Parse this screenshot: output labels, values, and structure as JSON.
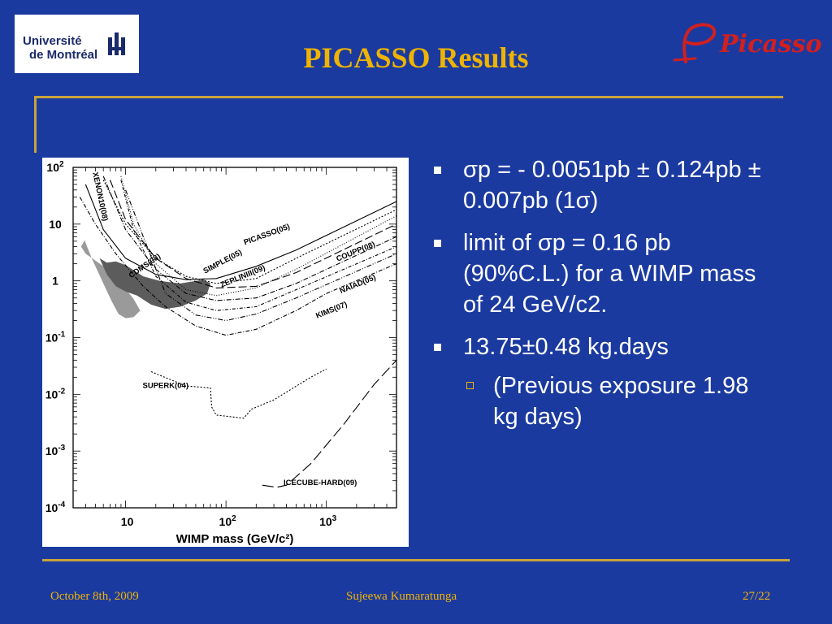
{
  "header": {
    "logo_line1": "Université",
    "logo_line2": "de Montréal",
    "title": "PICASSO Results",
    "brand": "Picasso"
  },
  "chart_data": {
    "type": "line",
    "xlabel": "WIMP mass (GeV/c²)",
    "ylabel": "",
    "x_scale": "log",
    "y_scale": "log",
    "xlim": [
      3,
      5000
    ],
    "ylim": [
      0.0001,
      100
    ],
    "x_ticks": [
      {
        "v": 10,
        "m": "10",
        "e": ""
      },
      {
        "v": 100,
        "m": "10",
        "e": "2"
      },
      {
        "v": 1000,
        "m": "10",
        "e": "3"
      }
    ],
    "y_ticks": [
      {
        "v": 100,
        "m": "10",
        "e": "2"
      },
      {
        "v": 10,
        "m": "10",
        "e": ""
      },
      {
        "v": 1,
        "m": "1",
        "e": ""
      },
      {
        "v": 0.1,
        "m": "10",
        "e": "-1"
      },
      {
        "v": 0.01,
        "m": "10",
        "e": "-2"
      },
      {
        "v": 0.001,
        "m": "10",
        "e": "-3"
      },
      {
        "v": 0.0001,
        "m": "10",
        "e": "-4"
      }
    ],
    "series": [
      {
        "name": "PICASSO(05)",
        "dash": "none",
        "label_at": [
          260,
          6
        ],
        "label_rot": -20,
        "points": [
          [
            4,
            50
          ],
          [
            6,
            8
          ],
          [
            10,
            2.5
          ],
          [
            20,
            1.3
          ],
          [
            40,
            1.05
          ],
          [
            80,
            1.1
          ],
          [
            200,
            1.8
          ],
          [
            500,
            3.5
          ],
          [
            5000,
            25
          ]
        ]
      },
      {
        "name": "SIMPLE(05)",
        "dash": "2,2",
        "label_at": [
          95,
          2
        ],
        "label_rot": -28,
        "points": [
          [
            6,
            60
          ],
          [
            10,
            10
          ],
          [
            20,
            2.5
          ],
          [
            40,
            1.2
          ],
          [
            80,
            0.9
          ],
          [
            200,
            1.1
          ],
          [
            500,
            2.5
          ],
          [
            5000,
            18
          ]
        ]
      },
      {
        "name": "ZEPLINIII(09)",
        "dash": "1,2",
        "label_at": [
          150,
          1.1
        ],
        "label_rot": -22,
        "points": [
          [
            9,
            70
          ],
          [
            12,
            10
          ],
          [
            20,
            2
          ],
          [
            40,
            0.7
          ],
          [
            80,
            0.55
          ],
          [
            200,
            0.75
          ],
          [
            500,
            1.6
          ],
          [
            5000,
            14
          ]
        ]
      },
      {
        "name": "COUPP(08)",
        "dash": "10,4",
        "label_at": [
          2000,
          3
        ],
        "label_rot": -22,
        "points": [
          [
            7,
            60
          ],
          [
            10,
            12
          ],
          [
            20,
            2.5
          ],
          [
            40,
            1.1
          ],
          [
            80,
            0.75
          ],
          [
            200,
            0.8
          ],
          [
            500,
            1.4
          ],
          [
            5000,
            10
          ]
        ]
      },
      {
        "name": "NAIAD(05)",
        "dash": "6,2,1,2",
        "label_at": [
          2100,
          0.8
        ],
        "label_rot": -22,
        "points": [
          [
            6,
            70
          ],
          [
            10,
            8
          ],
          [
            20,
            1.6
          ],
          [
            40,
            0.6
          ],
          [
            80,
            0.45
          ],
          [
            200,
            0.5
          ],
          [
            500,
            0.9
          ],
          [
            5000,
            6
          ]
        ]
      },
      {
        "name": "CDMS(08)",
        "dash": "4,2,1,2",
        "label_at": [
          16,
          1.7
        ],
        "label_rot": -35,
        "points": [
          [
            9,
            60
          ],
          [
            12,
            8
          ],
          [
            20,
            1.2
          ],
          [
            40,
            0.42
          ],
          [
            80,
            0.3
          ],
          [
            200,
            0.35
          ],
          [
            500,
            0.7
          ],
          [
            5000,
            4
          ]
        ]
      },
      {
        "name": "KIMS(07)",
        "dash": "6,2,1,2,1,2",
        "label_at": [
          1150,
          0.28
        ],
        "label_rot": -22,
        "points": [
          [
            10,
            40
          ],
          [
            15,
            6
          ],
          [
            25,
            0.6
          ],
          [
            50,
            0.25
          ],
          [
            100,
            0.2
          ],
          [
            200,
            0.26
          ],
          [
            500,
            0.5
          ],
          [
            5000,
            3
          ]
        ]
      },
      {
        "name": "XENON10(08)",
        "dash": "5,2,1,2",
        "label_at": [
          5.3,
          30
        ],
        "label_rot": 78,
        "points": [
          [
            3.5,
            30
          ],
          [
            5,
            10
          ],
          [
            8,
            3
          ],
          [
            15,
            0.8
          ],
          [
            25,
            0.35
          ],
          [
            50,
            0.16
          ],
          [
            100,
            0.11
          ],
          [
            200,
            0.14
          ],
          [
            500,
            0.3
          ],
          [
            1000,
            0.6
          ],
          [
            5000,
            2
          ]
        ]
      },
      {
        "name": "SUPERK(04)",
        "dash": "2,2",
        "label_at": [
          25,
          0.013
        ],
        "label_rot": 0,
        "points": [
          [
            18,
            0.025
          ],
          [
            40,
            0.014
          ],
          [
            70,
            0.013
          ],
          [
            72,
            0.006
          ],
          [
            80,
            0.0043
          ],
          [
            150,
            0.0038
          ],
          [
            180,
            0.0055
          ],
          [
            300,
            0.008
          ],
          [
            700,
            0.02
          ],
          [
            1000,
            0.028
          ]
        ]
      },
      {
        "name": "ICECUBE-HARD(09)",
        "dash": "14,5",
        "label_at": [
          870,
          0.00025
        ],
        "label_rot": 0,
        "points": [
          [
            230,
            0.00025
          ],
          [
            320,
            0.00023
          ],
          [
            400,
            0.00025
          ],
          [
            700,
            0.0006
          ],
          [
            1500,
            0.003
          ],
          [
            3000,
            0.015
          ],
          [
            5000,
            0.04
          ]
        ]
      }
    ],
    "regions": [
      {
        "color": "#9a9a9a",
        "points": [
          [
            3.6,
            4
          ],
          [
            3.9,
            5.2
          ],
          [
            4.6,
            2.5
          ],
          [
            6,
            0.9
          ],
          [
            7.2,
            0.45
          ],
          [
            8.5,
            0.26
          ],
          [
            10,
            0.22
          ],
          [
            12,
            0.23
          ],
          [
            14,
            0.3
          ],
          [
            12,
            0.48
          ],
          [
            10,
            0.72
          ],
          [
            8,
            1.2
          ],
          [
            6,
            1.8
          ],
          [
            4.8,
            2.4
          ],
          [
            4,
            3
          ]
        ]
      },
      {
        "color": "#5c5c5c",
        "points": [
          [
            5.5,
            2.5
          ],
          [
            6.5,
            2.1
          ],
          [
            8,
            2.2
          ],
          [
            10,
            1.9
          ],
          [
            15,
            1.2
          ],
          [
            22,
            1.0
          ],
          [
            35,
            0.9
          ],
          [
            60,
            1.05
          ],
          [
            70,
            0.9
          ],
          [
            65,
            0.6
          ],
          [
            50,
            0.45
          ],
          [
            35,
            0.35
          ],
          [
            25,
            0.32
          ],
          [
            18,
            0.38
          ],
          [
            13,
            0.55
          ],
          [
            10,
            0.65
          ],
          [
            8,
            0.8
          ],
          [
            6.5,
            1.3
          ]
        ]
      }
    ]
  },
  "bullets": {
    "b1": "σp = - 0.0051pb ± 0.124pb ± 0.007pb (1σ)",
    "b2": "limit of σp = 0.16 pb (90%C.L.) for a WIMP mass of 24 GeV/c2.",
    "b3": "13.75±0.48 kg.days",
    "sub1": "(Previous exposure 1.98 kg days)"
  },
  "footer": {
    "date": "October 8th, 2009",
    "author": "Sujeewa Kumaratunga",
    "page": "27/22"
  },
  "colors": {
    "background": "#1b3aa0",
    "title": "#f0b400",
    "rule": "#c9a33a",
    "text": "#ffffff"
  }
}
